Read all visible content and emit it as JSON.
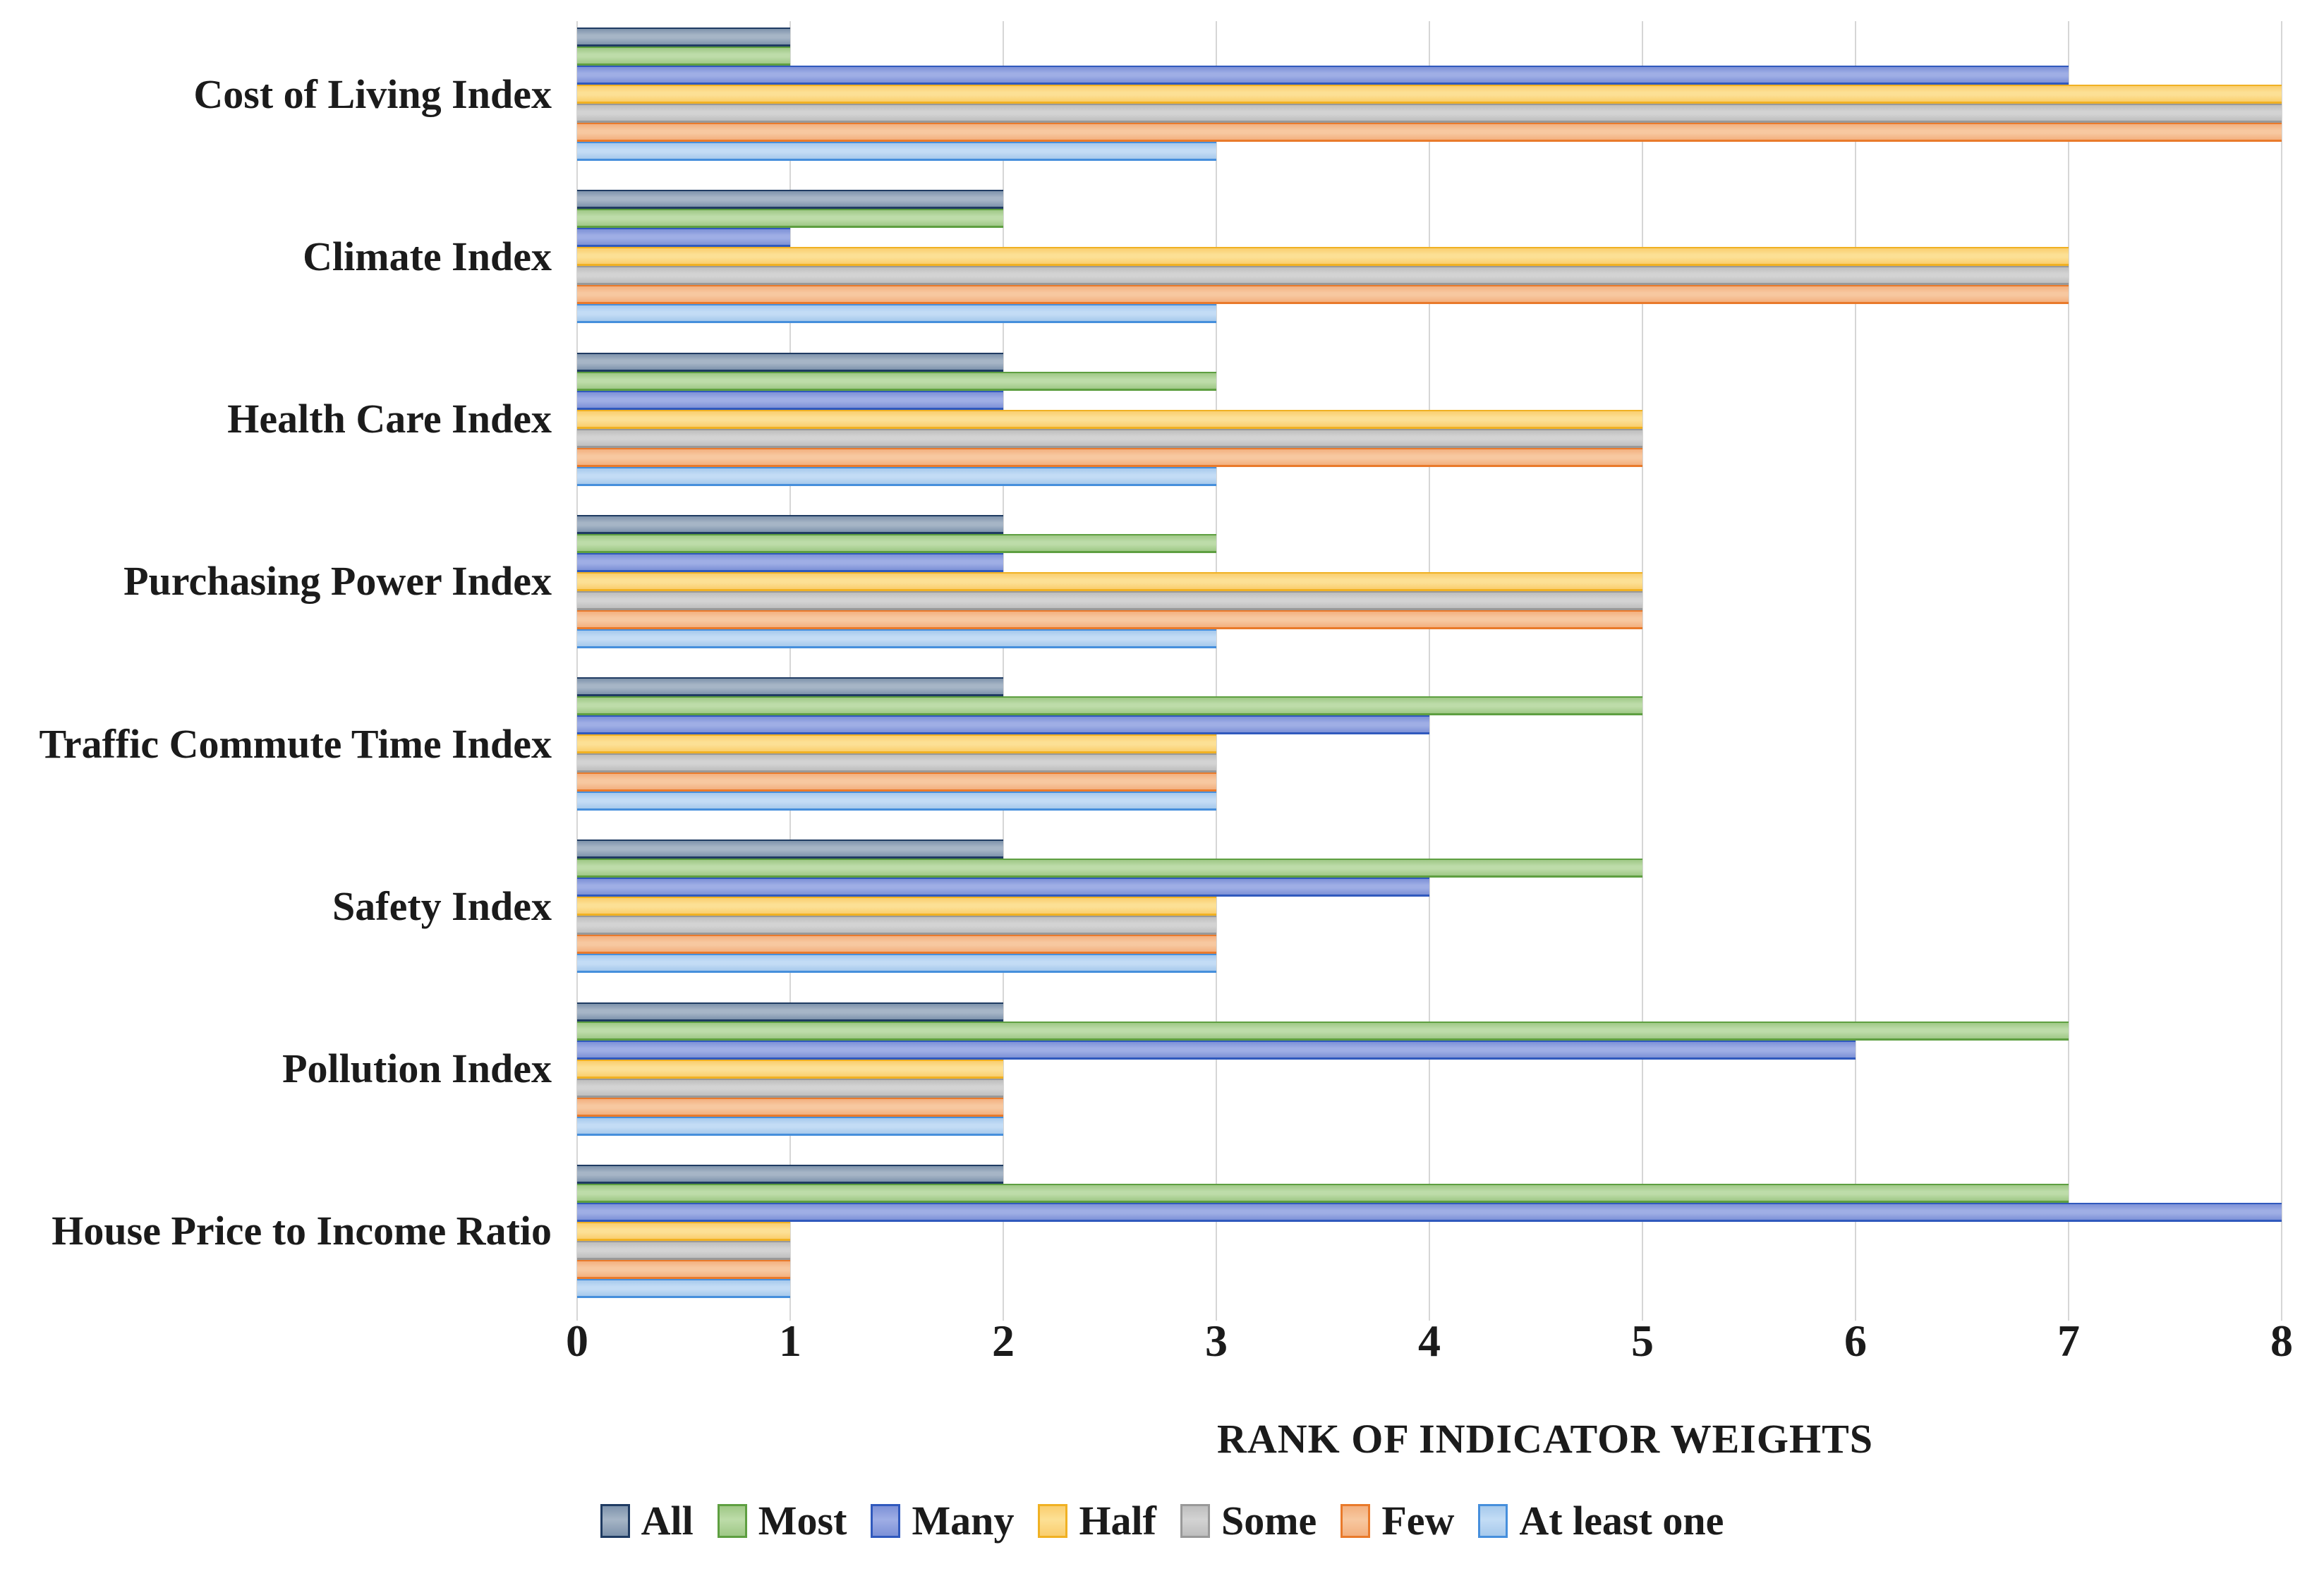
{
  "chart_data": {
    "type": "bar",
    "orientation": "horizontal",
    "title": "",
    "xlabel": "RANK OF INDICATOR WEIGHTS",
    "ylabel": "",
    "xlim": [
      0,
      8
    ],
    "xticks": [
      "0",
      "1",
      "2",
      "3",
      "4",
      "5",
      "6",
      "7",
      "8"
    ],
    "grid": true,
    "legend_position": "bottom",
    "categories": [
      "Cost of Living Index",
      "Climate Index",
      "Health Care Index",
      "Purchasing Power Index",
      "Traffic Commute Time Index",
      "Safety Index",
      "Pollution Index",
      "House Price to Income Ratio"
    ],
    "series": [
      {
        "name": "All",
        "values": [
          1,
          2,
          2,
          2,
          2,
          2,
          2,
          2
        ],
        "colors": {
          "fill": "#7E93AC",
          "light": "#A6B5C6",
          "edge": "#1F3B62"
        }
      },
      {
        "name": "Most",
        "values": [
          1,
          2,
          3,
          3,
          5,
          5,
          7,
          7
        ],
        "colors": {
          "fill": "#9FC886",
          "light": "#BDDCA9",
          "edge": "#5E9F41"
        }
      },
      {
        "name": "Many",
        "values": [
          7,
          1,
          2,
          2,
          4,
          4,
          6,
          8
        ],
        "colors": {
          "fill": "#7D91D7",
          "light": "#9FAEE5",
          "edge": "#3059BD"
        }
      },
      {
        "name": "Half",
        "values": [
          8,
          7,
          5,
          5,
          3,
          3,
          2,
          1
        ],
        "colors": {
          "fill": "#FACE6E",
          "light": "#FCE095",
          "edge": "#F0B123"
        }
      },
      {
        "name": "Some",
        "values": [
          8,
          7,
          5,
          5,
          3,
          3,
          2,
          1
        ],
        "colors": {
          "fill": "#BEBEBE",
          "light": "#D3D3D3",
          "edge": "#999999"
        }
      },
      {
        "name": "Few",
        "values": [
          8,
          7,
          5,
          5,
          3,
          3,
          2,
          1
        ],
        "colors": {
          "fill": "#F3B07F",
          "light": "#F7C8A0",
          "edge": "#E97A2B"
        }
      },
      {
        "name": "At least one",
        "values": [
          3,
          3,
          3,
          3,
          3,
          3,
          2,
          1
        ],
        "colors": {
          "fill": "#A6C9EC",
          "light": "#C3DCF5",
          "edge": "#468FDC"
        }
      }
    ]
  },
  "colors": {
    "background": "#FFFFFF",
    "grid": "#D6D6D6",
    "text": "#1B1B1B"
  }
}
